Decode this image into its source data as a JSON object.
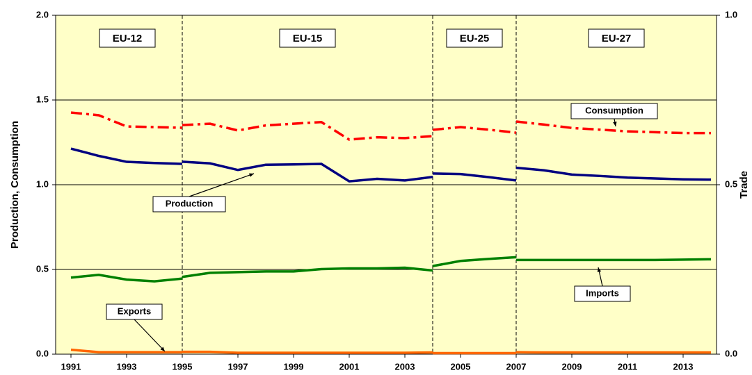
{
  "chart_data": {
    "type": "line",
    "y_label": "Production, Consumption",
    "y2_label": "Trade",
    "xlim": [
      1990.45,
      2014.2
    ],
    "xticks": [
      1991,
      1993,
      1995,
      1997,
      1999,
      2001,
      2003,
      2005,
      2007,
      2009,
      2011,
      2013
    ],
    "ylim": [
      0,
      2
    ],
    "yticks": [
      {
        "value": 0,
        "label": "0.0"
      },
      {
        "value": 0.5,
        "label": "0.5"
      },
      {
        "value": 1,
        "label": "1.0"
      },
      {
        "value": 1.5,
        "label": "1.5"
      },
      {
        "value": 2,
        "label": "2.0"
      }
    ],
    "y2lim": [
      0,
      1
    ],
    "y2ticks": [
      {
        "value": 0,
        "label": "0.0"
      },
      {
        "value": 0.5,
        "label": "0.5"
      },
      {
        "value": 1,
        "label": "1.0"
      }
    ],
    "grid": true,
    "background": "#ffffc8",
    "dividers": [
      1995,
      2004,
      2007
    ],
    "periods": [
      "EU-12",
      "EU-15",
      "EU-25",
      "EU-27"
    ],
    "series": [
      {
        "name": "Consumption",
        "color": "#ff0000",
        "style": "dashdot",
        "axis": "y",
        "pieces": [
          {
            "x": [
              1991,
              1992,
              1993,
              1994,
              1995
            ],
            "values": [
              1.426,
              1.41,
              1.344,
              1.34,
              1.336
            ]
          },
          {
            "x": [
              1995,
              1996,
              1997,
              1998,
              1999,
              2000,
              2001,
              2002,
              2003,
              2004
            ],
            "values": [
              1.352,
              1.36,
              1.32,
              1.35,
              1.36,
              1.37,
              1.266,
              1.28,
              1.275,
              1.287
            ]
          },
          {
            "x": [
              2004,
              2005,
              2006,
              2007
            ],
            "values": [
              1.324,
              1.34,
              1.325,
              1.307
            ]
          },
          {
            "x": [
              2007,
              2008,
              2009,
              2010,
              2011,
              2012,
              2013,
              2014
            ],
            "values": [
              1.373,
              1.355,
              1.335,
              1.325,
              1.315,
              1.31,
              1.305,
              1.305
            ]
          }
        ]
      },
      {
        "name": "Production",
        "color": "#000080",
        "style": "solid",
        "axis": "y",
        "pieces": [
          {
            "x": [
              1991,
              1992,
              1993,
              1994,
              1995
            ],
            "values": [
              1.213,
              1.17,
              1.135,
              1.128,
              1.123
            ]
          },
          {
            "x": [
              1995,
              1996,
              1997,
              1998,
              1999,
              2000,
              2001,
              2002,
              2003,
              2004
            ],
            "values": [
              1.136,
              1.126,
              1.087,
              1.118,
              1.12,
              1.123,
              1.02,
              1.035,
              1.025,
              1.046
            ]
          },
          {
            "x": [
              2004,
              2005,
              2006,
              2007
            ],
            "values": [
              1.066,
              1.063,
              1.045,
              1.025
            ]
          },
          {
            "x": [
              2007,
              2008,
              2009,
              2010,
              2011,
              2012,
              2013,
              2014
            ],
            "values": [
              1.1,
              1.085,
              1.06,
              1.052,
              1.042,
              1.037,
              1.032,
              1.03
            ]
          }
        ]
      },
      {
        "name": "Imports",
        "color": "#008000",
        "style": "solid",
        "axis": "y2",
        "pieces": [
          {
            "x": [
              1991,
              1992,
              1993,
              1994,
              1995
            ],
            "values": [
              0.226,
              0.234,
              0.22,
              0.215,
              0.223
            ]
          },
          {
            "x": [
              1995,
              1996,
              1997,
              1998,
              1999,
              2000,
              2001,
              2002,
              2003,
              2004
            ],
            "values": [
              0.228,
              0.24,
              0.242,
              0.244,
              0.244,
              0.251,
              0.253,
              0.253,
              0.255,
              0.247
            ]
          },
          {
            "x": [
              2004,
              2005,
              2006,
              2007
            ],
            "values": [
              0.26,
              0.275,
              0.281,
              0.286
            ]
          },
          {
            "x": [
              2007,
              2008,
              2009,
              2010,
              2011,
              2012,
              2013,
              2014
            ],
            "values": [
              0.278,
              0.278,
              0.278,
              0.278,
              0.278,
              0.278,
              0.279,
              0.28
            ]
          }
        ]
      },
      {
        "name": "Exports",
        "color": "#ff6600",
        "style": "solid",
        "axis": "y2",
        "pieces": [
          {
            "x": [
              1991,
              1992,
              1993,
              1994,
              1995
            ],
            "values": [
              0.013,
              0.006,
              0.006,
              0.006,
              0.006
            ]
          },
          {
            "x": [
              1995,
              1996,
              1997,
              1998,
              1999,
              2000,
              2001,
              2002,
              2003,
              2004
            ],
            "values": [
              0.007,
              0.007,
              0.004,
              0.004,
              0.004,
              0.004,
              0.004,
              0.004,
              0.004,
              0.005
            ]
          },
          {
            "x": [
              2004,
              2005,
              2006,
              2007
            ],
            "values": [
              0.003,
              0.003,
              0.003,
              0.003
            ]
          },
          {
            "x": [
              2007,
              2008,
              2009,
              2010,
              2011,
              2012,
              2013,
              2014
            ],
            "values": [
              0.006,
              0.005,
              0.005,
              0.005,
              0.005,
              0.005,
              0.005,
              0.005
            ]
          }
        ]
      }
    ]
  }
}
